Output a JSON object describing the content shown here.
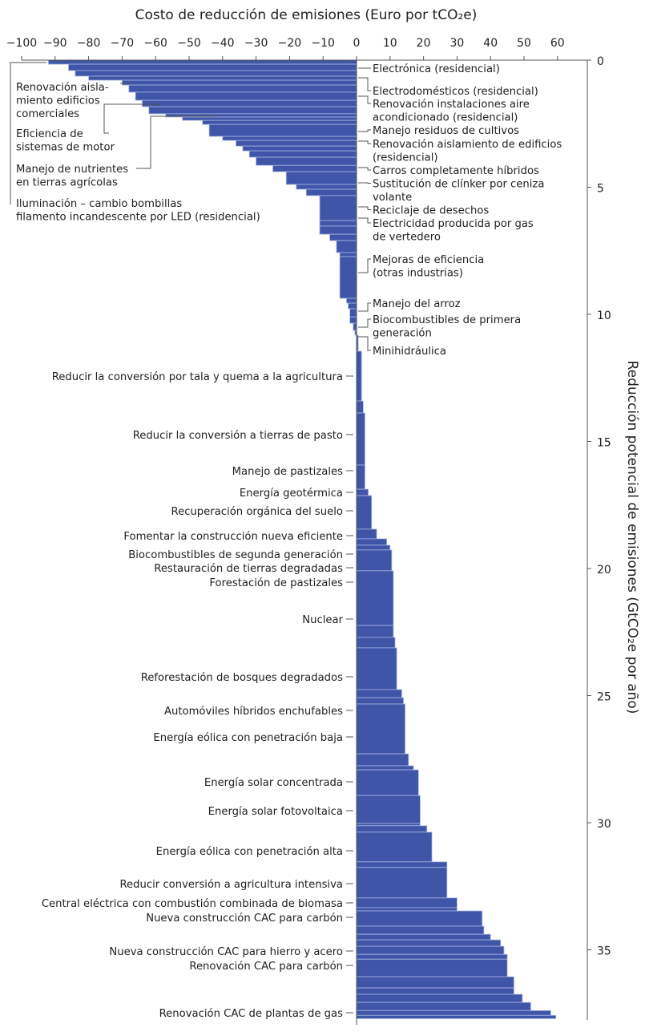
{
  "chart_data": {
    "type": "bar",
    "orientation": "horizontal-stacked-cost-curve",
    "title": "",
    "xlabel": "Costo de reducción de emisiones (Euro por tCO₂e)",
    "ylabel": "Reducción potencial de emisiones (GtCO₂e por año)",
    "xlim": [
      -100,
      60
    ],
    "xticks": [
      "−100",
      "−90",
      "−80",
      "−70",
      "−60",
      "−50",
      "−40",
      "−30",
      "−20",
      "−10",
      "0",
      "10",
      "20",
      "30",
      "40",
      "50",
      "60"
    ],
    "ylim": [
      0,
      38
    ],
    "yticks": [
      "0",
      "5",
      "10",
      "15",
      "20",
      "25",
      "30",
      "35"
    ],
    "colors": {
      "bar": "#3f55a8",
      "separator": "#a9b5e2",
      "axis": "#555555"
    },
    "bars": [
      {
        "cost": -92,
        "volume": 0.16
      },
      {
        "cost": -86,
        "volume": 0.25
      },
      {
        "cost": -84,
        "volume": 0.22
      },
      {
        "cost": -80,
        "volume": 0.16
      },
      {
        "cost": -70,
        "volume": 0.19
      },
      {
        "cost": -68,
        "volume": 0.28
      },
      {
        "cost": -66,
        "volume": 0.32
      },
      {
        "cost": -64,
        "volume": 0.25
      },
      {
        "cost": -62,
        "volume": 0.28
      },
      {
        "cost": -57,
        "volume": 0.13
      },
      {
        "cost": -52,
        "volume": 0.13
      },
      {
        "cost": -46,
        "volume": 0.16
      },
      {
        "cost": -44,
        "volume": 0.47
      },
      {
        "cost": -40,
        "volume": 0.16
      },
      {
        "cost": -36,
        "volume": 0.22
      },
      {
        "cost": -34,
        "volume": 0.19
      },
      {
        "cost": -32,
        "volume": 0.25
      },
      {
        "cost": -30,
        "volume": 0.32
      },
      {
        "cost": -25,
        "volume": 0.25
      },
      {
        "cost": -21,
        "volume": 0.5
      },
      {
        "cost": -18,
        "volume": 0.19
      },
      {
        "cost": -15,
        "volume": 0.25
      },
      {
        "cost": -11,
        "volume": 0.98
      },
      {
        "cost": -11,
        "volume": 0.22
      },
      {
        "cost": -11,
        "volume": 0.32
      },
      {
        "cost": -8,
        "volume": 0.25
      },
      {
        "cost": -6,
        "volume": 0.47
      },
      {
        "cost": -5,
        "volume": 0.16
      },
      {
        "cost": -5,
        "volume": 1.64
      },
      {
        "cost": -3,
        "volume": 0.19
      },
      {
        "cost": -2.5,
        "volume": 0.22
      },
      {
        "cost": -2,
        "volume": 0.32
      },
      {
        "cost": -2,
        "volume": 0.25
      },
      {
        "cost": -1,
        "volume": 0.28
      },
      {
        "cost": -0.5,
        "volume": 0.19
      },
      {
        "cost": 0.5,
        "volume": 0.63
      },
      {
        "cost": 1.5,
        "volume": 1.96
      },
      {
        "cost": 2,
        "volume": 0.47
      },
      {
        "cost": 2.5,
        "volume": 2.05
      },
      {
        "cost": 2.5,
        "volume": 0.95
      },
      {
        "cost": 3.5,
        "volume": 0.25
      },
      {
        "cost": 4.5,
        "volume": 1.32
      },
      {
        "cost": 6,
        "volume": 0.38
      },
      {
        "cost": 9,
        "volume": 0.25
      },
      {
        "cost": 10,
        "volume": 0.19
      },
      {
        "cost": 10.5,
        "volume": 0.82
      },
      {
        "cost": 11,
        "volume": 2.15
      },
      {
        "cost": 11,
        "volume": 0.47
      },
      {
        "cost": 11.5,
        "volume": 0.41
      },
      {
        "cost": 12,
        "volume": 1.64
      },
      {
        "cost": 13.5,
        "volume": 0.32
      },
      {
        "cost": 14,
        "volume": 0.25
      },
      {
        "cost": 14.5,
        "volume": 1.96
      },
      {
        "cost": 15.5,
        "volume": 0.47
      },
      {
        "cost": 17,
        "volume": 0.16
      },
      {
        "cost": 18.5,
        "volume": 1.01
      },
      {
        "cost": 19,
        "volume": 1.1
      },
      {
        "cost": 19,
        "volume": 0.09
      },
      {
        "cost": 21,
        "volume": 0.25
      },
      {
        "cost": 22.5,
        "volume": 1.17
      },
      {
        "cost": 27,
        "volume": 0.22
      },
      {
        "cost": 27,
        "volume": 1.2
      },
      {
        "cost": 30,
        "volume": 0.38
      },
      {
        "cost": 30,
        "volume": 0.13
      },
      {
        "cost": 37.5,
        "volume": 0.6
      },
      {
        "cost": 38,
        "volume": 0.32
      },
      {
        "cost": 40,
        "volume": 0.22
      },
      {
        "cost": 43,
        "volume": 0.25
      },
      {
        "cost": 44,
        "volume": 0.32
      },
      {
        "cost": 45,
        "volume": 0.19
      },
      {
        "cost": 45,
        "volume": 0.69
      },
      {
        "cost": 47,
        "volume": 0.44
      },
      {
        "cost": 47,
        "volume": 0.25
      },
      {
        "cost": 49.5,
        "volume": 0.32
      },
      {
        "cost": 52,
        "volume": 0.32
      },
      {
        "cost": 58,
        "volume": 0.19
      },
      {
        "cost": 59.5,
        "volume": 0.13
      }
    ],
    "annotations_right": [
      [
        "Electrónica (residencial)"
      ],
      [
        "Electrodomésticos (residencial)"
      ],
      [
        "Renovación instalaciones aire",
        "acondicionado (residencial)"
      ],
      [
        "Manejo residuos de cultivos"
      ],
      [
        "Renovación aislamiento de edificios",
        "(residencial)"
      ],
      [
        "Carros completamente híbridos"
      ],
      [
        "Sustitución de clínker por ceniza",
        "volante"
      ],
      [
        "Reciclaje de desechos"
      ],
      [
        "Electricidad producida por gas",
        "de vertedero"
      ],
      [
        "Mejoras de eficiencia",
        "(otras industrias)"
      ],
      [
        "Manejo del arroz"
      ],
      [
        "Biocombustibles de primera",
        "generación"
      ],
      [
        "Minihidráulica"
      ]
    ],
    "annotations_left_top": [
      [
        "Renovación aisla-",
        "miento edificios",
        "comerciales"
      ],
      [
        "Eficiencia de",
        "sistemas de motor"
      ],
      [
        "Manejo de nutrientes",
        "en tierras agrícolas"
      ],
      [
        "Iluminación – cambio bombillas",
        "filamento incandescente por LED (residencial)"
      ]
    ],
    "annotations_left": [
      "Reducir la conversión por tala y quema a la agricultura",
      "Reducir la conversión a tierras de pasto",
      "Manejo de pastizales",
      "Energía geotérmica",
      "Recuperación orgánica del suelo",
      "Fomentar la construcción nueva eficiente",
      "Biocombustibles de segunda generación",
      "Restauración de tierras degradadas",
      "Forestación de pastizales",
      "Nuclear",
      "Reforestación de bosques degradados",
      "Automóviles híbridos enchufables",
      "Energía eólica con penetración baja",
      "Energía solar concentrada",
      "Energía solar fotovoltaica",
      "Energía eólica con penetración alta",
      "Reducir conversión a agricultura intensiva",
      "Central eléctrica con combustión combinada de biomasa",
      "Nueva construcción CAC para carbón",
      "Nueva construcción CAC para hierro y acero",
      "Renovación CAC para carbón",
      "Renovación CAC de plantas de gas"
    ]
  }
}
